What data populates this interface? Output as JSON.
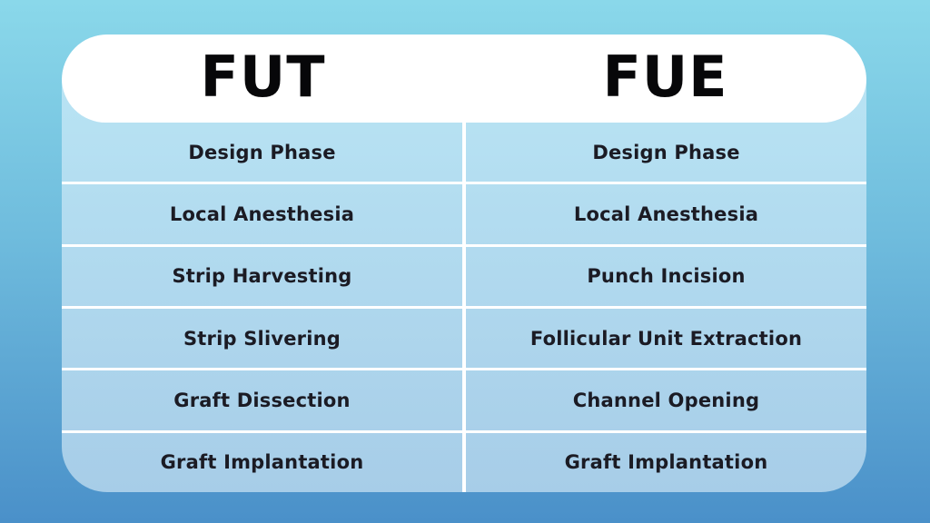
{
  "comparison_table": {
    "columns": [
      {
        "header": "FUT",
        "rows": [
          "Design Phase",
          "Local Anesthesia",
          "Strip Harvesting",
          "Strip Slivering",
          "Graft Dissection",
          "Graft Implantation"
        ]
      },
      {
        "header": "FUE",
        "rows": [
          "Design Phase",
          "Local Anesthesia",
          "Punch Incision",
          "Follicular Unit Extraction",
          "Channel Opening",
          "Graft Implantation"
        ]
      }
    ]
  },
  "colors": {
    "background_top": "#8AD8EA",
    "background_bottom": "#4A90C9",
    "card_top": "#BAE6F5",
    "card_bottom": "#A7CDE8",
    "header_background": "#FFFFFF",
    "divider": "#FFFFFF",
    "row_text": "#1B1B24",
    "header_text": "#070709"
  }
}
